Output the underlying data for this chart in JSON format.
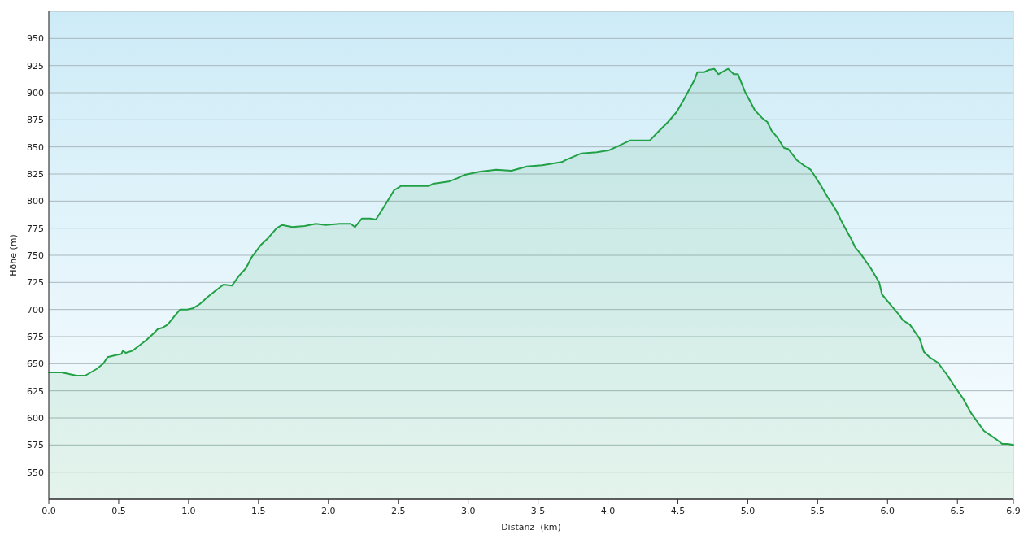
{
  "chart_data": {
    "type": "area",
    "xlabel": "Distanz  (km)",
    "ylabel": "Höhe (m)",
    "xlim": [
      0,
      6.9
    ],
    "ylim": [
      525,
      975
    ],
    "xticks": [
      {
        "value": 0,
        "label": "0.0"
      },
      {
        "value": 0.5,
        "label": "0.5"
      },
      {
        "value": 1,
        "label": "1.0"
      },
      {
        "value": 1.5,
        "label": "1.5"
      },
      {
        "value": 2,
        "label": "2.0"
      },
      {
        "value": 2.5,
        "label": "2.5"
      },
      {
        "value": 3,
        "label": "3.0"
      },
      {
        "value": 3.5,
        "label": "3.5"
      },
      {
        "value": 4,
        "label": "4.0"
      },
      {
        "value": 4.5,
        "label": "4.5"
      },
      {
        "value": 5,
        "label": "5.0"
      },
      {
        "value": 5.5,
        "label": "5.5"
      },
      {
        "value": 6,
        "label": "6.0"
      },
      {
        "value": 6.5,
        "label": "6.5"
      },
      {
        "value": 6.9,
        "label": "6.9"
      }
    ],
    "yticks": [
      550,
      575,
      600,
      625,
      650,
      675,
      700,
      725,
      750,
      775,
      800,
      825,
      850,
      875,
      900,
      925,
      950
    ],
    "grid": "y",
    "series": [
      {
        "color": "#22a045",
        "x": [
          0,
          0.09,
          0.2,
          0.24,
          0.26,
          0.34,
          0.39,
          0.42,
          0.48,
          0.52,
          0.53,
          0.55,
          0.6,
          0.64,
          0.7,
          0.75,
          0.78,
          0.81,
          0.85,
          0.9,
          0.94,
          0.99,
          1.03,
          1.08,
          1.14,
          1.18,
          1.25,
          1.31,
          1.36,
          1.41,
          1.45,
          1.52,
          1.57,
          1.63,
          1.67,
          1.74,
          1.83,
          1.91,
          1.98,
          2.08,
          2.16,
          2.19,
          2.24,
          2.3,
          2.34,
          2.38,
          2.47,
          2.52,
          2.64,
          2.72,
          2.75,
          2.86,
          2.92,
          2.97,
          3.08,
          3.2,
          3.31,
          3.42,
          3.53,
          3.67,
          3.7,
          3.81,
          3.92,
          4.01,
          4.16,
          4.3,
          4.36,
          4.43,
          4.49,
          4.54,
          4.62,
          4.64,
          4.69,
          4.72,
          4.76,
          4.79,
          4.83,
          4.86,
          4.9,
          4.93,
          4.98,
          5.05,
          5.1,
          5.14,
          5.17,
          5.21,
          5.24,
          5.26,
          5.29,
          5.35,
          5.4,
          5.45,
          5.52,
          5.57,
          5.63,
          5.68,
          5.74,
          5.77,
          5.81,
          5.88,
          5.94,
          5.96,
          6.03,
          6.09,
          6.11,
          6.16,
          6.23,
          6.26,
          6.3,
          6.36,
          6.43,
          6.48,
          6.54,
          6.6,
          6.65,
          6.69,
          6.77,
          6.82,
          6.86,
          6.9
        ],
        "values": [
          642,
          642,
          639,
          639,
          639,
          645,
          650,
          656,
          658,
          659,
          662,
          660,
          662,
          666,
          672,
          678,
          682,
          683,
          686,
          694,
          700,
          700,
          701,
          705,
          712,
          716,
          723,
          722,
          731,
          738,
          748,
          760,
          766,
          775,
          778,
          776,
          777,
          779,
          778,
          779,
          779,
          776,
          784,
          784,
          783,
          791,
          810,
          814,
          814,
          814,
          816,
          818,
          821,
          824,
          827,
          829,
          828,
          832,
          833,
          836,
          838,
          844,
          845,
          847,
          856,
          856,
          864,
          873,
          882,
          893,
          912,
          919,
          919,
          921,
          922,
          917,
          920,
          922,
          917,
          917,
          901,
          884,
          877,
          873,
          865,
          859,
          853,
          849,
          848,
          838,
          833,
          829,
          815,
          804,
          792,
          779,
          765,
          757,
          751,
          738,
          725,
          714,
          703,
          694,
          690,
          686,
          673,
          661,
          656,
          651,
          639,
          629,
          618,
          604,
          595,
          588,
          581,
          576,
          576,
          575
        ]
      }
    ]
  }
}
